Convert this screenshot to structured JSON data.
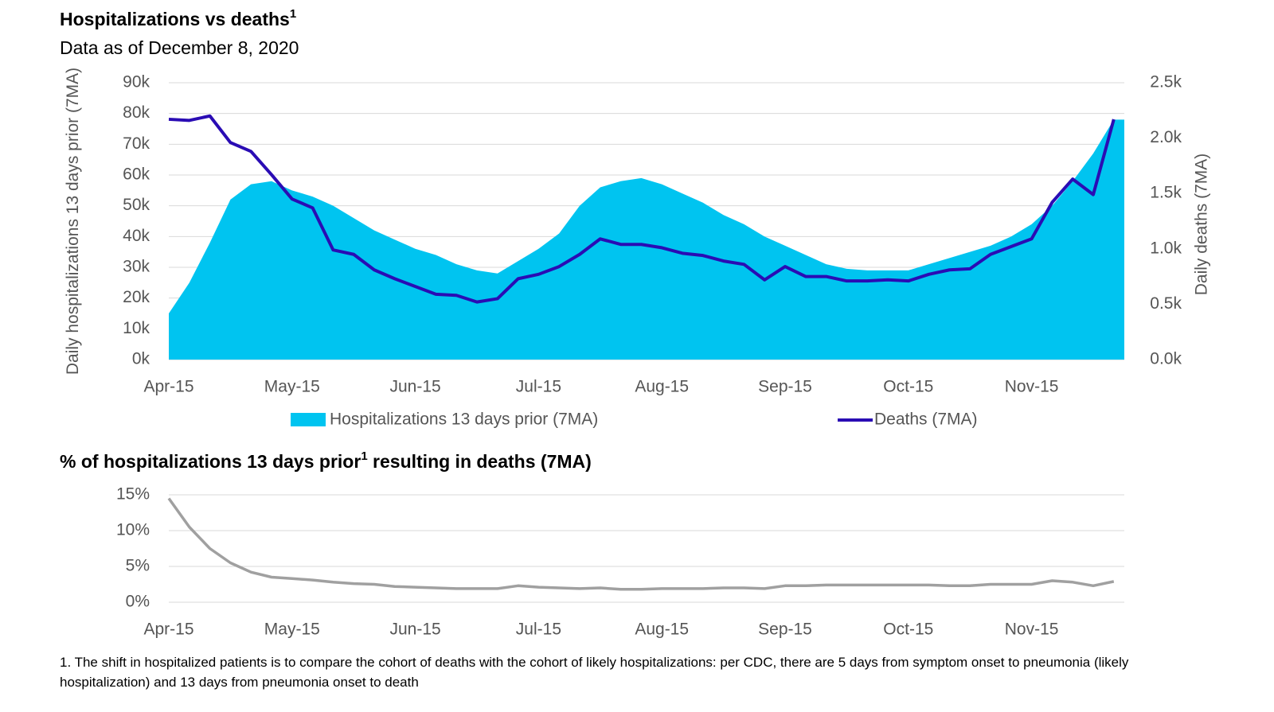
{
  "chart_data": [
    {
      "type": "area",
      "title": "Hospitalizations vs deaths",
      "title_note": "1",
      "subtitle": "Data as of December 8, 2020",
      "ylabel": "Daily hospitalizations 13 days prior (7MA)",
      "y2label": "Daily deaths (7MA)",
      "categories": [
        "Apr-15",
        null,
        null,
        null,
        null,
        null,
        "May-15",
        null,
        null,
        null,
        null,
        null,
        "Jun-15",
        null,
        null,
        null,
        null,
        null,
        "Jul-15",
        null,
        null,
        null,
        null,
        null,
        "Aug-15",
        null,
        null,
        null,
        null,
        null,
        "Sep-15",
        null,
        null,
        null,
        null,
        null,
        "Oct-15",
        null,
        null,
        null,
        null,
        null,
        "Nov-15",
        null,
        null,
        null,
        null
      ],
      "ylim": [
        0,
        90000
      ],
      "yticks": [
        {
          "value": 0,
          "label": "0k"
        },
        {
          "value": 10000,
          "label": "10k"
        },
        {
          "value": 20000,
          "label": "20k"
        },
        {
          "value": 30000,
          "label": "30k"
        },
        {
          "value": 40000,
          "label": "40k"
        },
        {
          "value": 50000,
          "label": "50k"
        },
        {
          "value": 60000,
          "label": "60k"
        },
        {
          "value": 70000,
          "label": "70k"
        },
        {
          "value": 80000,
          "label": "80k"
        },
        {
          "value": 90000,
          "label": "90k"
        }
      ],
      "y2lim": [
        0,
        2500
      ],
      "y2ticks": [
        {
          "value": 0,
          "label": "0.0k"
        },
        {
          "value": 500,
          "label": "0.5k"
        },
        {
          "value": 1000,
          "label": "1.0k"
        },
        {
          "value": 1500,
          "label": "1.5k"
        },
        {
          "value": 2000,
          "label": "2.0k"
        },
        {
          "value": 2500,
          "label": "2.5k"
        }
      ],
      "grid": true,
      "series": [
        {
          "name": "Hospitalizations 13 days prior (7MA)",
          "type": "area",
          "color": "#00c4f0",
          "values": [
            15000,
            25000,
            38000,
            52000,
            57000,
            58000,
            55000,
            53000,
            50000,
            46000,
            42000,
            39000,
            36000,
            34000,
            31000,
            29000,
            28000,
            32000,
            36000,
            41000,
            50000,
            56000,
            58000,
            59000,
            57000,
            54000,
            51000,
            47000,
            44000,
            40000,
            37000,
            34000,
            31000,
            29500,
            29000,
            29000,
            29000,
            31000,
            33000,
            35000,
            37000,
            40000,
            44000,
            50000,
            58000,
            67000,
            78000
          ]
        },
        {
          "name": "Deaths (7MA)",
          "type": "line",
          "axis": "y2",
          "color": "#2a0cb4",
          "values": [
            2170,
            2160,
            2200,
            1960,
            1880,
            1670,
            1450,
            1370,
            990,
            950,
            810,
            730,
            660,
            590,
            580,
            520,
            550,
            730,
            770,
            840,
            950,
            1090,
            1040,
            1040,
            1010,
            960,
            940,
            890,
            860,
            720,
            840,
            750,
            750,
            710,
            710,
            720,
            710,
            770,
            810,
            820,
            950,
            1020,
            1090,
            1420,
            1630,
            1490,
            2170
          ]
        }
      ]
    },
    {
      "type": "line",
      "title": "% of hospitalizations 13 days prior",
      "title_note": "1",
      "title_end": " resulting in deaths (7MA)",
      "categories": [
        "Apr-15",
        null,
        null,
        null,
        null,
        null,
        "May-15",
        null,
        null,
        null,
        null,
        null,
        "Jun-15",
        null,
        null,
        null,
        null,
        null,
        "Jul-15",
        null,
        null,
        null,
        null,
        null,
        "Aug-15",
        null,
        null,
        null,
        null,
        null,
        "Sep-15",
        null,
        null,
        null,
        null,
        null,
        "Oct-15",
        null,
        null,
        null,
        null,
        null,
        "Nov-15",
        null,
        null,
        null,
        null
      ],
      "ylim": [
        0,
        15
      ],
      "yticks": [
        {
          "value": 0,
          "label": "0%"
        },
        {
          "value": 5,
          "label": "5%"
        },
        {
          "value": 10,
          "label": "10%"
        },
        {
          "value": 15,
          "label": "15%"
        }
      ],
      "grid": true,
      "series": [
        {
          "name": "% resulting in deaths",
          "color": "#a0a0a0",
          "values": [
            14.5,
            10.5,
            7.5,
            5.5,
            4.2,
            3.5,
            3.3,
            3.1,
            2.8,
            2.6,
            2.5,
            2.2,
            2.1,
            2.0,
            1.9,
            1.9,
            1.9,
            2.3,
            2.1,
            2.0,
            1.9,
            2.0,
            1.8,
            1.8,
            1.9,
            1.9,
            1.9,
            2.0,
            2.0,
            1.9,
            2.3,
            2.3,
            2.4,
            2.4,
            2.4,
            2.4,
            2.4,
            2.4,
            2.3,
            2.3,
            2.5,
            2.5,
            2.5,
            3.0,
            2.8,
            2.3,
            2.9
          ]
        }
      ]
    }
  ],
  "footnote": "1. The shift in hospitalized patients is to compare the cohort of deaths with the cohort of likely hospitalizations: per CDC, there are 5 days from symptom onset to pneumonia (likely hospitalization) and 13 days from pneumonia onset to death"
}
